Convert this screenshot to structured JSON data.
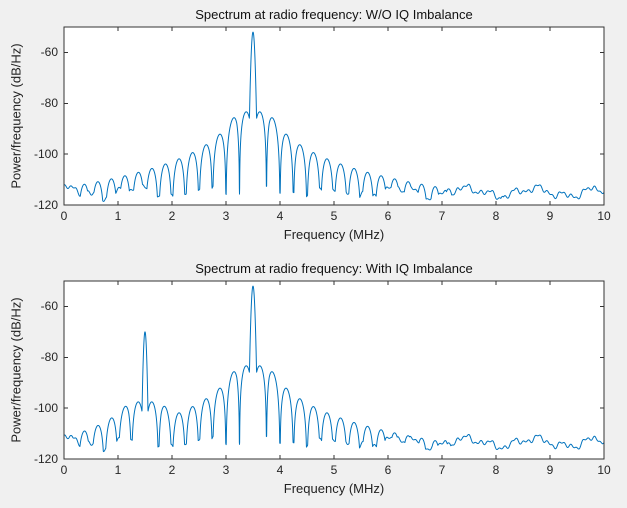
{
  "window": {
    "background": "#f0f0f0"
  },
  "figure": {
    "line_color": "#0072bd",
    "axis_color": "#333333",
    "plot_background": "#ffffff",
    "text_color": "#262626"
  },
  "chart_data": [
    {
      "type": "line",
      "title": "Spectrum at radio frequency: W/O IQ Imbalance",
      "xlabel": "Frequency (MHz)",
      "ylabel": "Power/frequency (dB/Hz)",
      "xlim": [
        0,
        10
      ],
      "ylim": [
        -120,
        -50
      ],
      "xticks": [
        0,
        1,
        2,
        3,
        4,
        5,
        6,
        7,
        8,
        9,
        10
      ],
      "yticks": [
        -120,
        -100,
        -80,
        -60
      ],
      "grid": false,
      "legend": null,
      "series": [
        {
          "name": "psd",
          "model": "sinc_spectrum",
          "center_mhz": 3.5,
          "peak_db": -52,
          "main_lobe_halfwidth_mhz": 0.08,
          "sidelobe_spacing_mhz": 0.25,
          "sidelobe_ref_db": -98,
          "sidelobe_slope_db_per_decade": -28,
          "noise_floor_db": -115,
          "image_peak": null
        }
      ],
      "key_points": [
        {
          "freq_mhz": 3.5,
          "power_db": -52
        },
        {
          "freq_mhz": 3.1,
          "power_db": -87
        },
        {
          "freq_mhz": 0.0,
          "power_db": -115
        },
        {
          "freq_mhz": 10.0,
          "power_db": -116
        }
      ]
    },
    {
      "type": "line",
      "title": "Spectrum at radio frequency: With IQ Imbalance",
      "xlabel": "Frequency (MHz)",
      "ylabel": "Power/frequency (dB/Hz)",
      "xlim": [
        0,
        10
      ],
      "ylim": [
        -120,
        -50
      ],
      "xticks": [
        0,
        1,
        2,
        3,
        4,
        5,
        6,
        7,
        8,
        9,
        10
      ],
      "yticks": [
        -120,
        -100,
        -80,
        -60
      ],
      "grid": false,
      "legend": null,
      "series": [
        {
          "name": "psd",
          "model": "sinc_spectrum",
          "center_mhz": 3.5,
          "peak_db": -52,
          "main_lobe_halfwidth_mhz": 0.08,
          "sidelobe_spacing_mhz": 0.25,
          "sidelobe_ref_db": -98,
          "sidelobe_slope_db_per_decade": -28,
          "noise_floor_db": -113.5,
          "image_peak": {
            "center_mhz": 1.5,
            "peak_db": -70,
            "main_lobe_halfwidth_mhz": 0.07,
            "sidelobe_spacing_mhz": 0.25,
            "sidelobe_ref_db": -108,
            "sidelobe_slope_db_per_decade": -20
          }
        }
      ],
      "key_points": [
        {
          "freq_mhz": 3.5,
          "power_db": -52
        },
        {
          "freq_mhz": 1.5,
          "power_db": -70
        },
        {
          "freq_mhz": 0.0,
          "power_db": -114
        },
        {
          "freq_mhz": 10.0,
          "power_db": -115
        }
      ]
    }
  ]
}
